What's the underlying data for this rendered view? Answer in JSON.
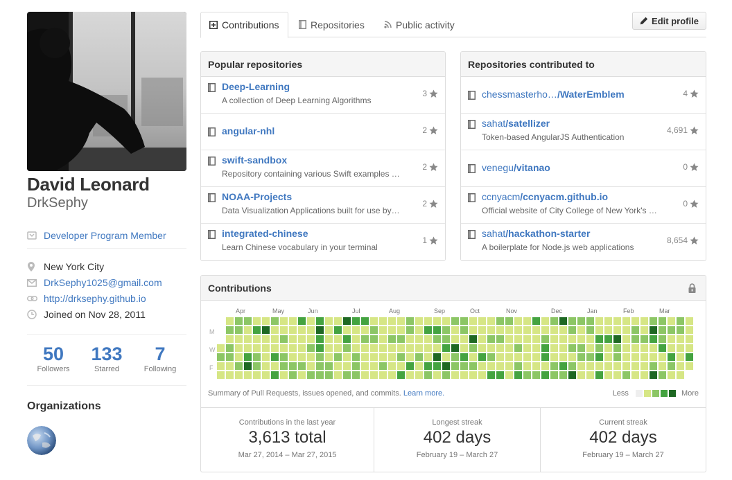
{
  "profile": {
    "full_name": "David Leonard",
    "username": "DrkSephy",
    "badge_label": "Developer Program Member",
    "location": "New York City",
    "email": "DrkSephy1025@gmail.com",
    "website": "http://drksephy.github.io",
    "joined": "Joined on Nov 28, 2011"
  },
  "stats": [
    {
      "value": "50",
      "label": "Followers"
    },
    {
      "value": "133",
      "label": "Starred"
    },
    {
      "value": "7",
      "label": "Following"
    }
  ],
  "organizations_title": "Organizations",
  "tabs": [
    {
      "label": "Contributions",
      "icon": "plus-square-icon"
    },
    {
      "label": "Repositories",
      "icon": "book-icon"
    },
    {
      "label": "Public activity",
      "icon": "rss-icon"
    }
  ],
  "edit_profile_label": "Edit profile",
  "popular": {
    "title": "Popular repositories",
    "repos": [
      {
        "name": "Deep-Learning",
        "desc": "A collection of Deep Learning Algorithms",
        "stars": "3"
      },
      {
        "name": "angular-nhl",
        "desc": "",
        "stars": "2"
      },
      {
        "name": "swift-sandbox",
        "desc": "Repository containing various Swift examples …",
        "stars": "2"
      },
      {
        "name": "NOAA-Projects",
        "desc": "Data Visualization Applications built for use by…",
        "stars": "2"
      },
      {
        "name": "integrated-chinese",
        "desc": "Learn Chinese vocabulary in your terminal",
        "stars": "1"
      }
    ]
  },
  "contributed": {
    "title": "Repositories contributed to",
    "repos": [
      {
        "owner": "chessmasterho…",
        "name": "/WaterEmblem",
        "desc": "",
        "stars": "4"
      },
      {
        "owner": "sahat",
        "name": "/satellizer",
        "desc": "Token-based AngularJS Authentication",
        "stars": "4,691"
      },
      {
        "owner": "venegu",
        "name": "/vitanao",
        "desc": "",
        "stars": "0"
      },
      {
        "owner": "ccnyacm",
        "name": "/ccnyacm.github.io",
        "desc": "Official website of City College of New York's …",
        "stars": "0"
      },
      {
        "owner": "sahat",
        "name": "/hackathon-starter",
        "desc": "A boilerplate for Node.js web applications",
        "stars": "8,654"
      }
    ]
  },
  "contributions": {
    "title": "Contributions",
    "months": [
      "Apr",
      "May",
      "Jun",
      "Jul",
      "Aug",
      "Sep",
      "Oct",
      "Nov",
      "Dec",
      "Jan",
      "Feb",
      "Mar"
    ],
    "day_labels": [
      "M",
      "W",
      "F"
    ],
    "summary_text": "Summary of Pull Requests, issues opened, and commits.",
    "learn_more": "Learn more.",
    "legend_less": "Less",
    "legend_more": "More",
    "colors": [
      "#eeeeee",
      "#d6e685",
      "#8cc665",
      "#44a340",
      "#1e6823"
    ],
    "stats": [
      {
        "title": "Contributions in the last year",
        "value": "3,613 total",
        "sub": "Mar 27, 2014 – Mar 27, 2015"
      },
      {
        "title": "Longest streak",
        "value": "402 days",
        "sub": "February 19 – March 27"
      },
      {
        "title": "Current streak",
        "value": "402 days",
        "sub": "February 19 – March 27"
      }
    ]
  }
}
